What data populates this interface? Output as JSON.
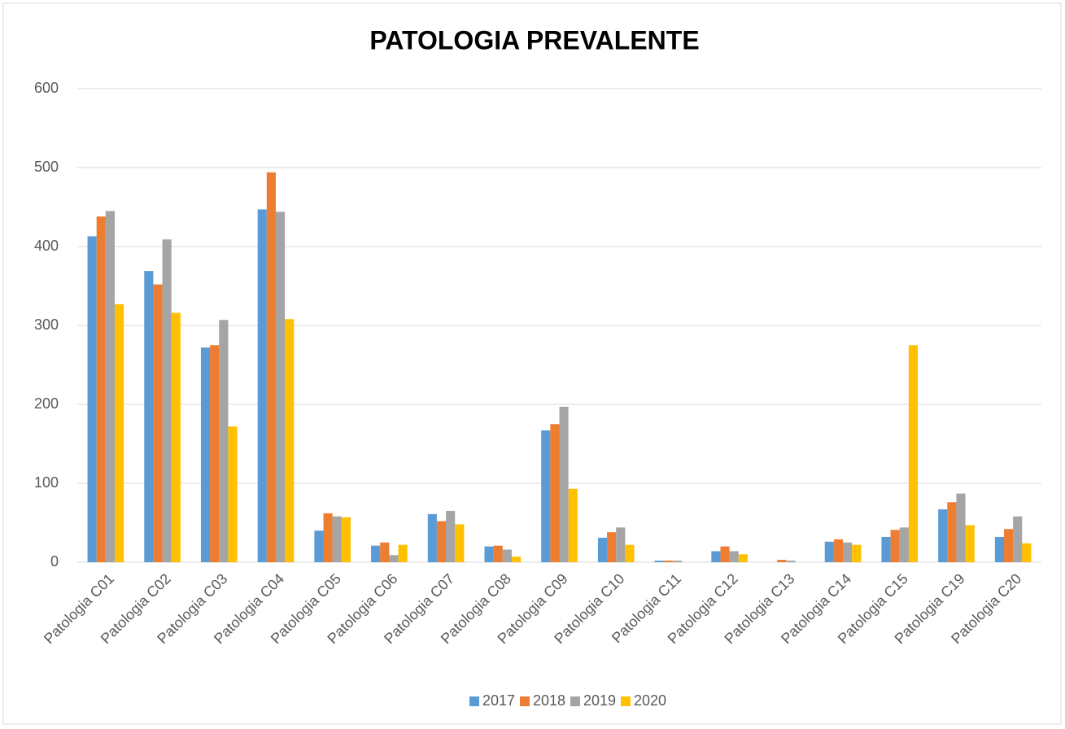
{
  "chart_data": {
    "type": "bar",
    "title": "PATOLOGIA PREVALENTE",
    "categories": [
      "Patologia C01",
      "Patologia C02",
      "Patologia C03",
      "Patologia C04",
      "Patologia C05",
      "Patologia C06",
      "Patologia C07",
      "Patologia C08",
      "Patologia C09",
      "Patologia C10",
      "Patologia C11",
      "Patologia C12",
      "Patologia C13",
      "Patologia C14",
      "Patologia C15",
      "Patologia C19",
      "Patologia C20"
    ],
    "series": [
      {
        "name": "2017",
        "color": "#5b9bd5",
        "values": [
          413,
          369,
          272,
          447,
          40,
          21,
          61,
          20,
          167,
          31,
          2,
          14,
          0,
          26,
          32,
          67,
          32
        ]
      },
      {
        "name": "2018",
        "color": "#ed7d31",
        "values": [
          438,
          352,
          275,
          494,
          62,
          25,
          52,
          21,
          175,
          38,
          2,
          20,
          3,
          29,
          41,
          76,
          42
        ]
      },
      {
        "name": "2019",
        "color": "#a5a5a5",
        "values": [
          445,
          409,
          307,
          444,
          58,
          9,
          65,
          16,
          197,
          44,
          2,
          14,
          2,
          25,
          44,
          87,
          58
        ]
      },
      {
        "name": "2020",
        "color": "#ffc000",
        "values": [
          327,
          316,
          172,
          308,
          57,
          22,
          48,
          7,
          93,
          22,
          0,
          10,
          0,
          22,
          275,
          47,
          24
        ]
      }
    ],
    "ylim": [
      0,
      600
    ],
    "yticks": [
      0,
      100,
      200,
      300,
      400,
      500,
      600
    ],
    "grid": true,
    "legend": "bottom"
  }
}
